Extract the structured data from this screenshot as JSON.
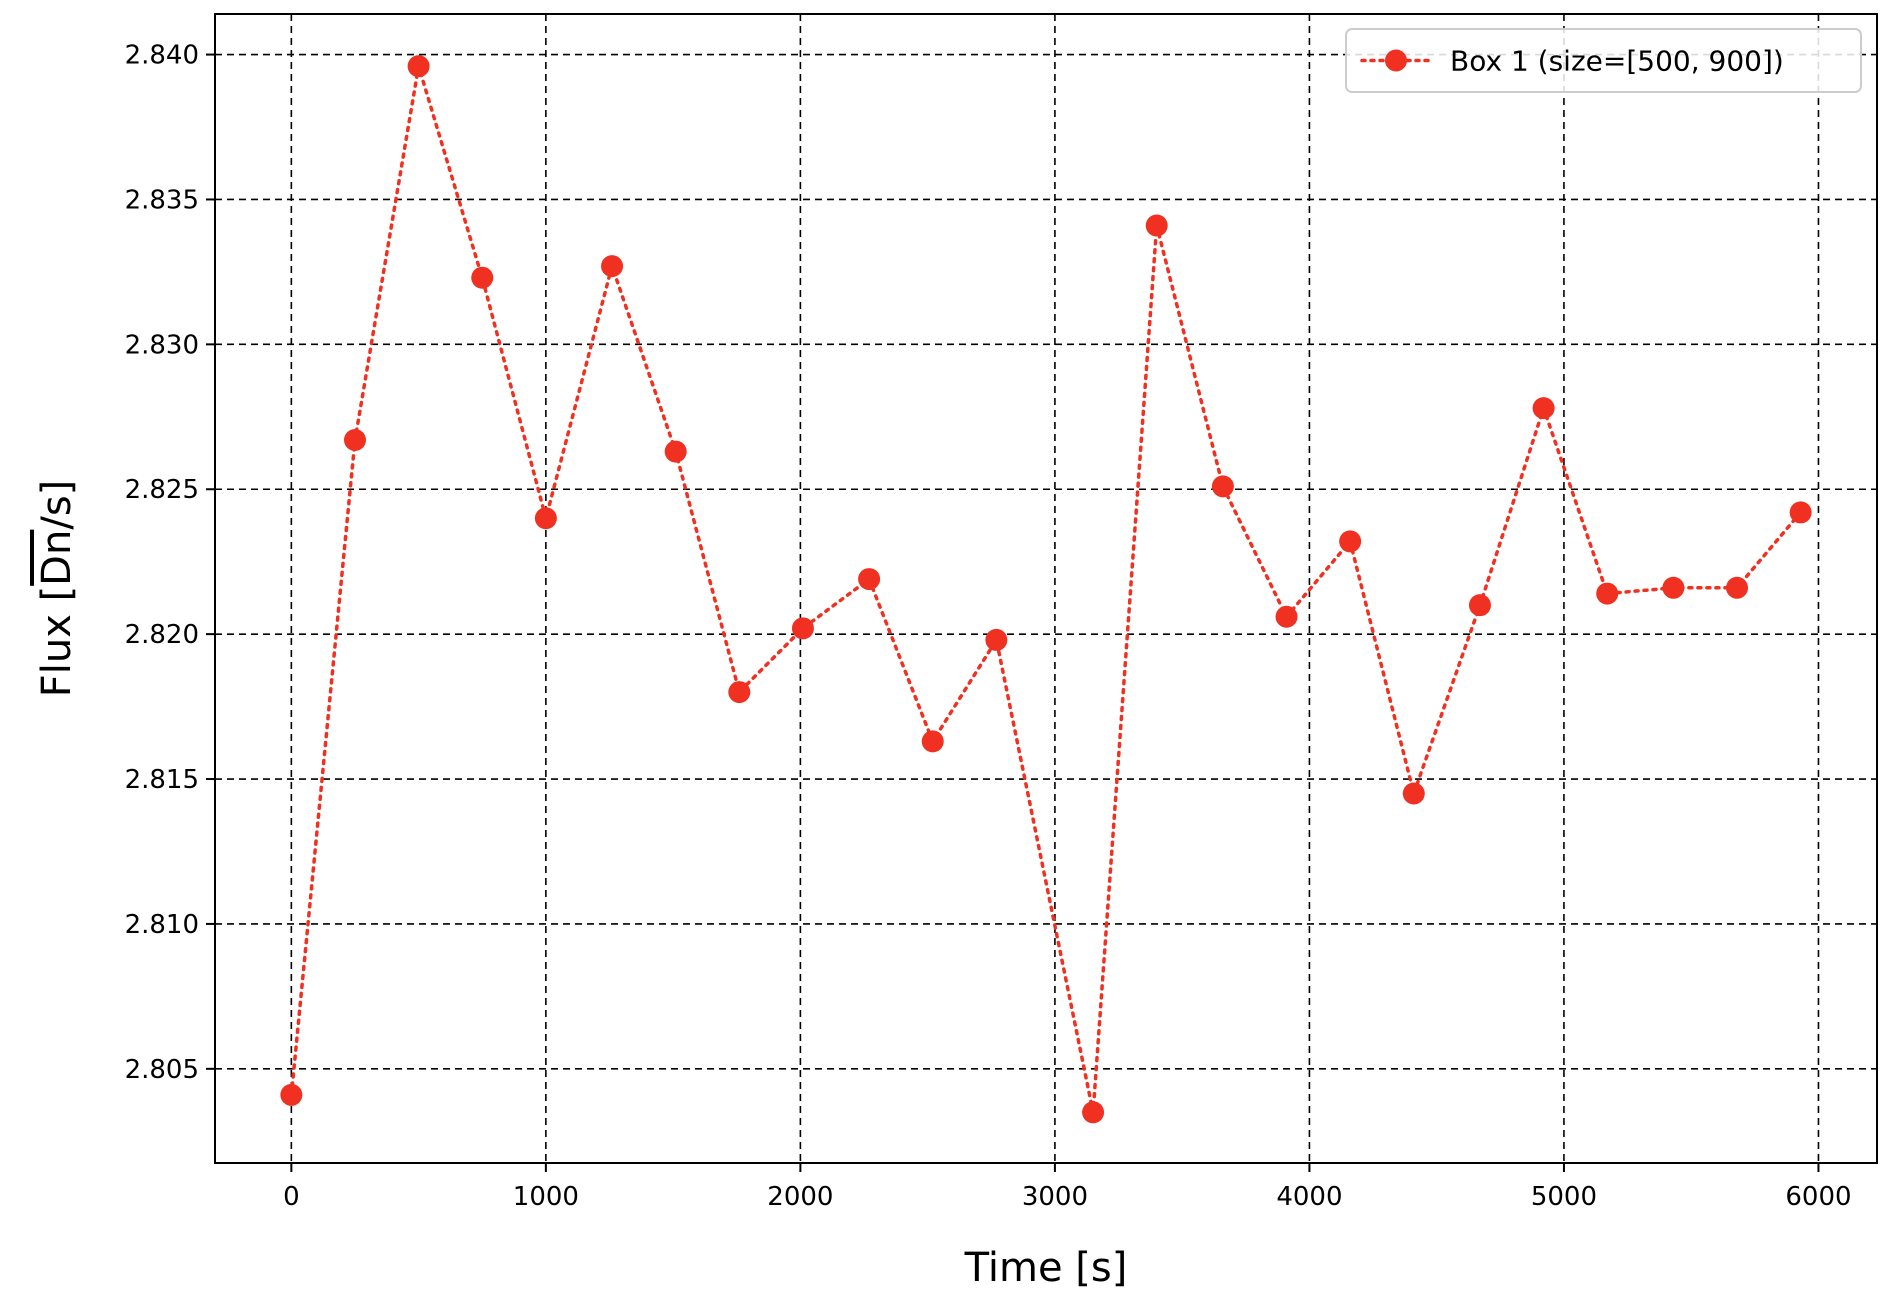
{
  "chart_data": {
    "type": "line",
    "title": "",
    "xlabel": "Time [s]",
    "ylabel_prefix": "Flux [",
    "ylabel_over": "Dn",
    "ylabel_suffix": "/s]",
    "xlim": [
      -300,
      6230
    ],
    "ylim": [
      2.80175,
      2.8414
    ],
    "xticks": [
      0,
      1000,
      2000,
      3000,
      4000,
      5000,
      6000
    ],
    "xtick_labels": [
      "0",
      "1000",
      "2000",
      "3000",
      "4000",
      "5000",
      "6000"
    ],
    "yticks": [
      2.805,
      2.81,
      2.815,
      2.82,
      2.825,
      2.83,
      2.835,
      2.84
    ],
    "ytick_labels": [
      "2.805",
      "2.810",
      "2.815",
      "2.820",
      "2.825",
      "2.830",
      "2.835",
      "2.840"
    ],
    "grid": true,
    "grid_style": "dashed",
    "legend_position": "top-right",
    "series": [
      {
        "name": "Box 1 (size=[500, 900])",
        "color": "#f03020",
        "line_style": "dotted",
        "marker": "circle",
        "x": [
          0,
          250,
          500,
          750,
          1000,
          1260,
          1510,
          1760,
          2010,
          2270,
          2520,
          2770,
          3150,
          3400,
          3660,
          3910,
          4160,
          4410,
          4670,
          4920,
          5170,
          5430,
          5680,
          5930
        ],
        "y": [
          2.8041,
          2.8267,
          2.8396,
          2.8323,
          2.824,
          2.8327,
          2.8263,
          2.818,
          2.8202,
          2.8219,
          2.8163,
          2.8198,
          2.8035,
          2.8341,
          2.8251,
          2.8206,
          2.8232,
          2.8145,
          2.821,
          2.8278,
          2.8214,
          2.8216,
          2.8216,
          2.8242
        ]
      }
    ]
  }
}
